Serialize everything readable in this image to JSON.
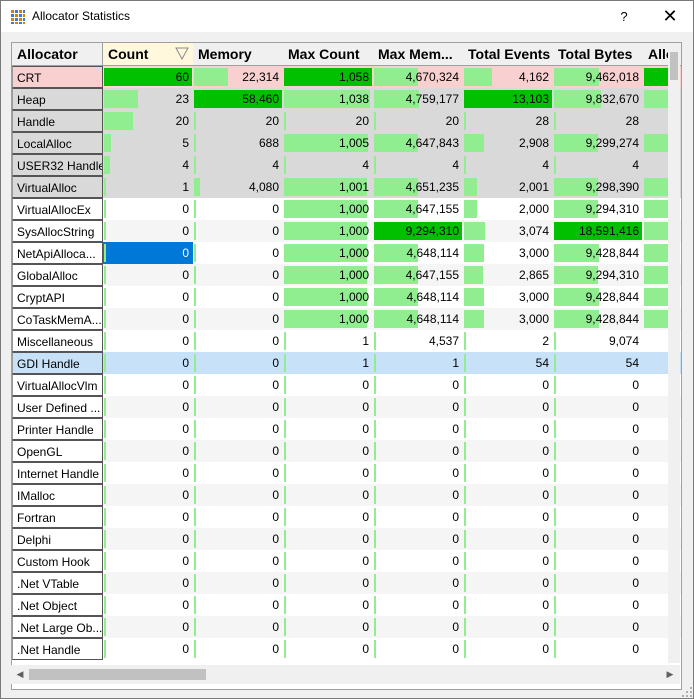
{
  "window": {
    "title": "Allocator Statistics",
    "help_label": "?",
    "close_label": "✕"
  },
  "colors": {
    "red_row": "#f8d0d0",
    "grey_row": "#d9d9d9",
    "blue_row": "#c6e1f8",
    "bar_light": "#90ee90",
    "bar_dark": "#00c000",
    "selection": "#0078d7"
  },
  "columns": [
    "Allocator",
    "Count",
    "Memory",
    "Max Count",
    "Max Mem...",
    "Total Events",
    "Total Bytes",
    "Allo"
  ],
  "sort_icon": "sort-descending-icon",
  "rows": [
    {
      "name": "CRT",
      "count": "60",
      "memory": "22,314",
      "max_count": "1,058",
      "max_mem": "4,670,324",
      "total_events": "4,162",
      "total_bytes": "9,462,018"
    },
    {
      "name": "Heap",
      "count": "23",
      "memory": "58,460",
      "max_count": "1,038",
      "max_mem": "4,759,177",
      "total_events": "13,103",
      "total_bytes": "9,832,670"
    },
    {
      "name": "Handle",
      "count": "20",
      "memory": "20",
      "max_count": "20",
      "max_mem": "20",
      "total_events": "28",
      "total_bytes": "28"
    },
    {
      "name": "LocalAlloc",
      "count": "5",
      "memory": "688",
      "max_count": "1,005",
      "max_mem": "4,647,843",
      "total_events": "2,908",
      "total_bytes": "9,299,274"
    },
    {
      "name": "USER32 Handle",
      "count": "4",
      "memory": "4",
      "max_count": "4",
      "max_mem": "4",
      "total_events": "4",
      "total_bytes": "4"
    },
    {
      "name": "VirtualAlloc",
      "count": "1",
      "memory": "4,080",
      "max_count": "1,001",
      "max_mem": "4,651,235",
      "total_events": "2,001",
      "total_bytes": "9,298,390"
    },
    {
      "name": "VirtualAllocEx",
      "count": "0",
      "memory": "0",
      "max_count": "1,000",
      "max_mem": "4,647,155",
      "total_events": "2,000",
      "total_bytes": "9,294,310"
    },
    {
      "name": "SysAllocString",
      "count": "0",
      "memory": "0",
      "max_count": "1,000",
      "max_mem": "9,294,310",
      "total_events": "3,074",
      "total_bytes": "18,591,416"
    },
    {
      "name": "NetApiAlloca...",
      "count": "0",
      "memory": "0",
      "max_count": "1,000",
      "max_mem": "4,648,114",
      "total_events": "3,000",
      "total_bytes": "9,428,844"
    },
    {
      "name": "GlobalAlloc",
      "count": "0",
      "memory": "0",
      "max_count": "1,000",
      "max_mem": "4,647,155",
      "total_events": "2,865",
      "total_bytes": "9,294,310"
    },
    {
      "name": "CryptAPI",
      "count": "0",
      "memory": "0",
      "max_count": "1,000",
      "max_mem": "4,648,114",
      "total_events": "3,000",
      "total_bytes": "9,428,844"
    },
    {
      "name": "CoTaskMemA...",
      "count": "0",
      "memory": "0",
      "max_count": "1,000",
      "max_mem": "4,648,114",
      "total_events": "3,000",
      "total_bytes": "9,428,844"
    },
    {
      "name": "Miscellaneous",
      "count": "0",
      "memory": "0",
      "max_count": "1",
      "max_mem": "4,537",
      "total_events": "2",
      "total_bytes": "9,074"
    },
    {
      "name": "GDI Handle",
      "count": "0",
      "memory": "0",
      "max_count": "1",
      "max_mem": "1",
      "total_events": "54",
      "total_bytes": "54"
    },
    {
      "name": "VirtualAllocVlm",
      "count": "0",
      "memory": "0",
      "max_count": "0",
      "max_mem": "0",
      "total_events": "0",
      "total_bytes": "0"
    },
    {
      "name": "User Defined ...",
      "count": "0",
      "memory": "0",
      "max_count": "0",
      "max_mem": "0",
      "total_events": "0",
      "total_bytes": "0"
    },
    {
      "name": "Printer Handle",
      "count": "0",
      "memory": "0",
      "max_count": "0",
      "max_mem": "0",
      "total_events": "0",
      "total_bytes": "0"
    },
    {
      "name": "OpenGL",
      "count": "0",
      "memory": "0",
      "max_count": "0",
      "max_mem": "0",
      "total_events": "0",
      "total_bytes": "0"
    },
    {
      "name": "Internet Handle",
      "count": "0",
      "memory": "0",
      "max_count": "0",
      "max_mem": "0",
      "total_events": "0",
      "total_bytes": "0"
    },
    {
      "name": "IMalloc",
      "count": "0",
      "memory": "0",
      "max_count": "0",
      "max_mem": "0",
      "total_events": "0",
      "total_bytes": "0"
    },
    {
      "name": "Fortran",
      "count": "0",
      "memory": "0",
      "max_count": "0",
      "max_mem": "0",
      "total_events": "0",
      "total_bytes": "0"
    },
    {
      "name": "Delphi",
      "count": "0",
      "memory": "0",
      "max_count": "0",
      "max_mem": "0",
      "total_events": "0",
      "total_bytes": "0"
    },
    {
      "name": "Custom Hook",
      "count": "0",
      "memory": "0",
      "max_count": "0",
      "max_mem": "0",
      "total_events": "0",
      "total_bytes": "0"
    },
    {
      "name": ".Net VTable",
      "count": "0",
      "memory": "0",
      "max_count": "0",
      "max_mem": "0",
      "total_events": "0",
      "total_bytes": "0"
    },
    {
      "name": ".Net Object",
      "count": "0",
      "memory": "0",
      "max_count": "0",
      "max_mem": "0",
      "total_events": "0",
      "total_bytes": "0"
    },
    {
      "name": ".Net Large Ob...",
      "count": "0",
      "memory": "0",
      "max_count": "0",
      "max_mem": "0",
      "total_events": "0",
      "total_bytes": "0"
    },
    {
      "name": ".Net Handle",
      "count": "0",
      "memory": "0",
      "max_count": "0",
      "max_mem": "0",
      "total_events": "0",
      "total_bytes": "0"
    }
  ]
}
